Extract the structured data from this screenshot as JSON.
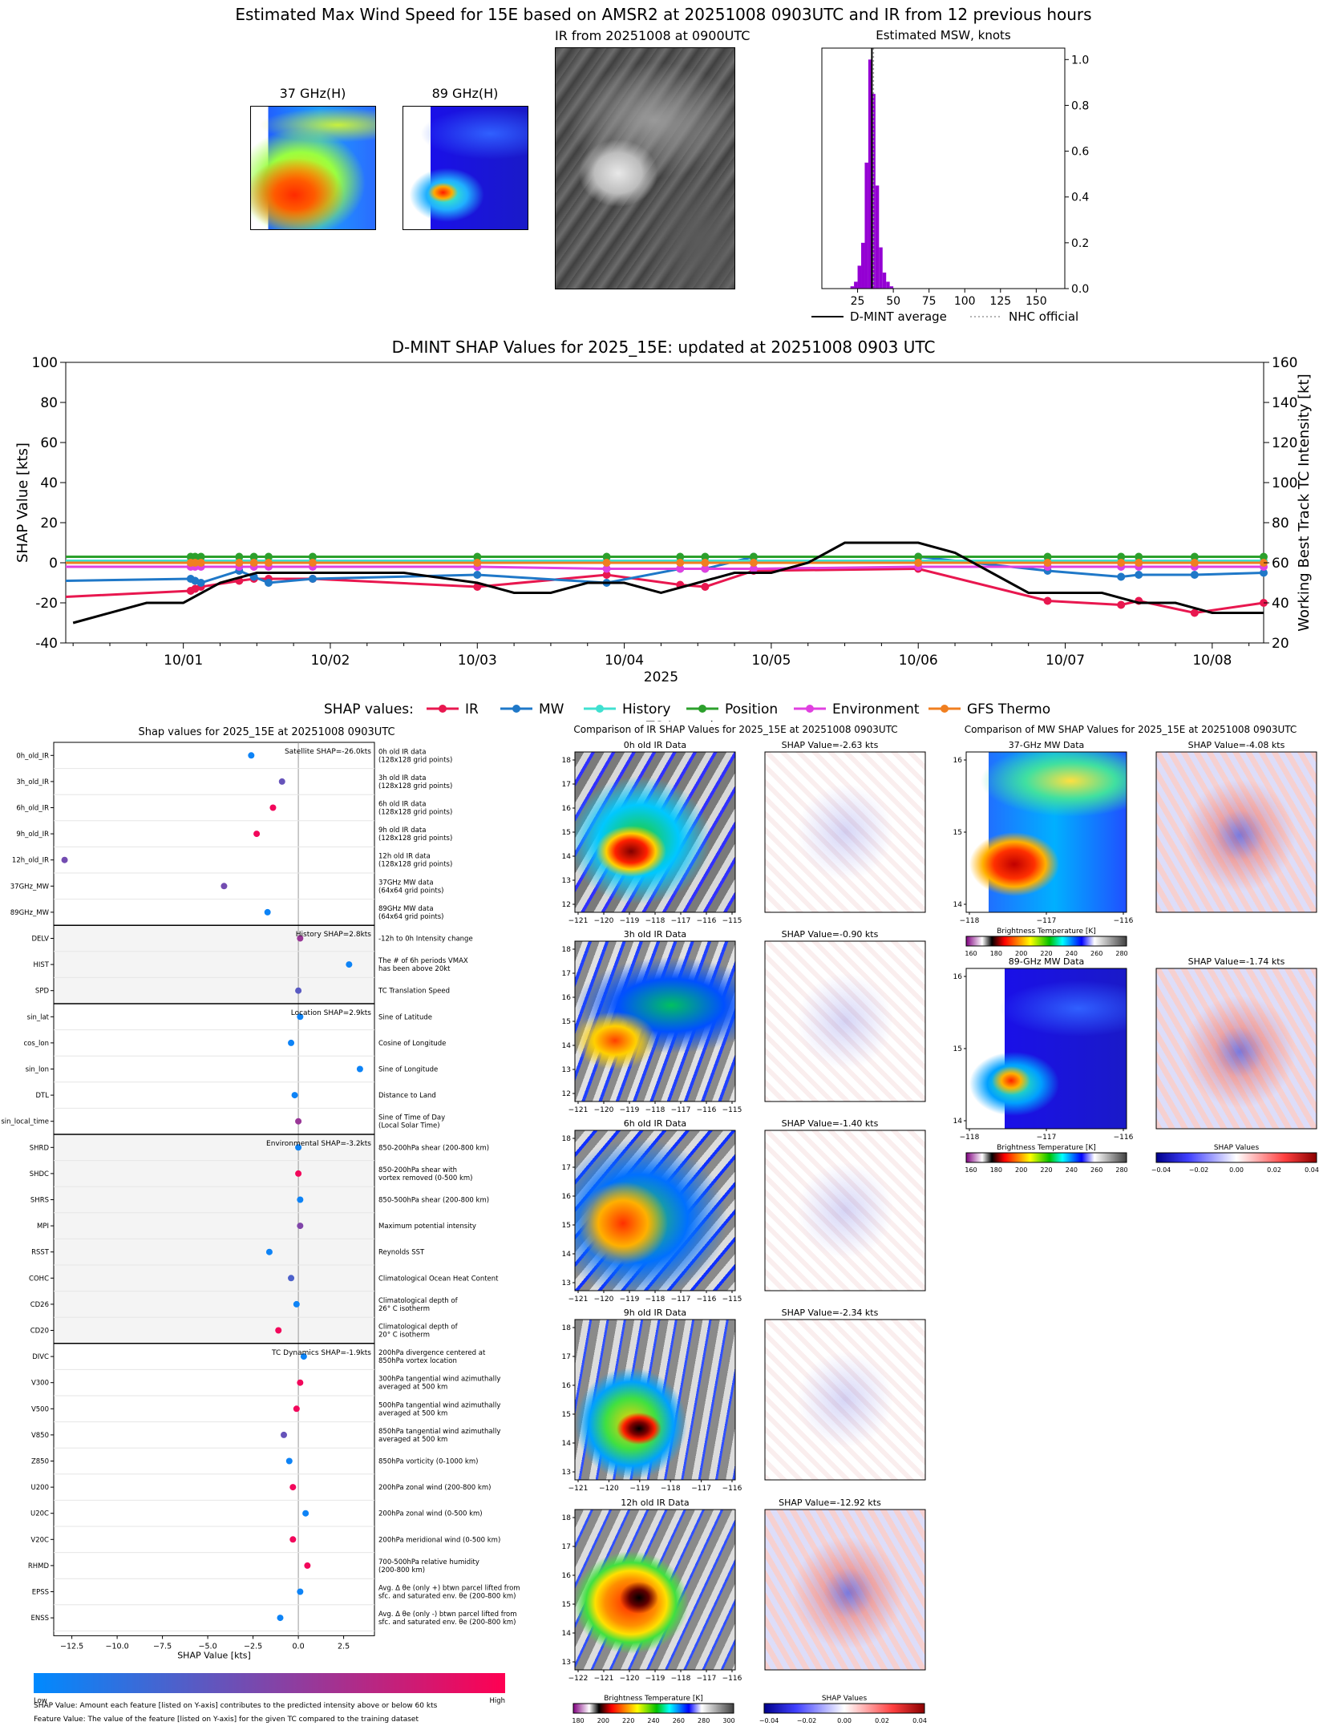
{
  "figure_title": "Estimated Max Wind Speed for 15E based on AMSR2 at 20251008 0903UTC and IR from 12 previous hours",
  "panels": {
    "ghz37_title": "37 GHz(H)",
    "ghz89_title": "89 GHz(H)",
    "ir_title": "IR from 20251008 at 0900UTC",
    "msw_title": "Estimated MSW, knots"
  },
  "chart_data": [
    {
      "type": "bar",
      "id": "msw_histogram",
      "title": "Estimated MSW, knots",
      "ylabel": "Relative Prob",
      "xlim": [
        0,
        170
      ],
      "ylim": [
        0,
        1.05
      ],
      "xticks": [
        "25",
        "50",
        "75",
        "100",
        "125",
        "150"
      ],
      "yticks": [
        "0.0",
        "0.2",
        "0.4",
        "0.6",
        "0.8",
        "1.0"
      ],
      "bin_width": 2.5,
      "bins_x": [
        20,
        22.5,
        25,
        27.5,
        30,
        32.5,
        35,
        37.5,
        40,
        42.5,
        45,
        47.5
      ],
      "bins_y": [
        0.01,
        0.03,
        0.1,
        0.2,
        0.55,
        1.0,
        0.85,
        0.45,
        0.18,
        0.07,
        0.03,
        0.01
      ],
      "dmint_average": 35,
      "nhc_official": 35,
      "legend": [
        "D-MINT average",
        "NHC official"
      ],
      "bar_color": "#9400d3"
    },
    {
      "type": "line",
      "id": "shap_timeseries",
      "title": "D-MINT SHAP Values for 2025_15E: updated at 20251008 0903 UTC",
      "xlabel": "2025",
      "ylabel": "SHAP Value [kts]",
      "y2label": "Working Best Track TC Intensity [kt]",
      "xlim": [
        -0.8,
        7.35
      ],
      "ylim": [
        -40,
        100
      ],
      "y2lim": [
        20,
        160
      ],
      "xticks": [
        "10/01",
        "10/02",
        "10/03",
        "10/04",
        "10/05",
        "10/06",
        "10/07",
        "10/08"
      ],
      "yticks": [
        "-40",
        "-20",
        "0",
        "20",
        "40",
        "60",
        "80",
        "100"
      ],
      "y2ticks": [
        "20",
        "40",
        "60",
        "80",
        "100",
        "120",
        "140",
        "160"
      ],
      "legend_prefix": "SHAP values:",
      "x": [
        -0.8,
        0.05,
        0.08,
        0.12,
        0.38,
        0.48,
        0.58,
        0.88,
        2.0,
        2.88,
        3.38,
        3.55,
        3.88,
        5.0,
        5.88,
        6.38,
        6.5,
        6.88,
        7.35
      ],
      "series": [
        {
          "name": "IR",
          "color": "#e8174f",
          "values": [
            -17,
            -14,
            -13,
            -12,
            -9,
            -8,
            -8,
            -8,
            -12,
            -6,
            -11,
            -12,
            -4,
            -3,
            -19,
            -21,
            -19,
            -25,
            -20
          ]
        },
        {
          "name": "MW",
          "color": "#1f78c8",
          "values": [
            -9,
            -8,
            -9,
            -10,
            -4,
            -7,
            -10,
            -8,
            -6,
            -10,
            -3,
            -3,
            3,
            3,
            -4,
            -7,
            -6,
            -6,
            -5
          ]
        },
        {
          "name": "History",
          "color": "#40e0d0",
          "values": [
            1,
            1,
            1,
            1,
            1,
            1,
            1,
            1,
            1,
            1,
            1,
            1,
            1,
            1,
            1,
            1,
            1,
            1,
            1
          ]
        },
        {
          "name": "Position",
          "color": "#2ca02c",
          "values": [
            3,
            3,
            3,
            3,
            3,
            3,
            3,
            3,
            3,
            3,
            3,
            3,
            3,
            3,
            3,
            3,
            3,
            3,
            3
          ]
        },
        {
          "name": "Environment",
          "color": "#e040e0",
          "values": [
            -2,
            -2,
            -2,
            -2,
            -2,
            -2,
            -2,
            -2,
            -2,
            -3,
            -3,
            -3,
            -3,
            -2,
            -2,
            -2,
            -2,
            -2,
            -2
          ]
        },
        {
          "name": "GFS Thermo",
          "color": "#f07f20",
          "values": [
            0,
            0,
            0,
            0,
            0,
            0,
            0,
            0,
            0,
            0,
            0,
            0,
            0,
            0,
            0,
            0,
            0,
            0,
            0
          ]
        }
      ],
      "intensity": {
        "name": "TC Intensity",
        "x": [
          -0.75,
          -0.25,
          0.0,
          0.25,
          0.5,
          1.0,
          1.5,
          2.0,
          2.25,
          2.5,
          2.75,
          3.0,
          3.25,
          3.5,
          3.75,
          4.0,
          4.25,
          4.5,
          4.75,
          5.0,
          5.25,
          5.5,
          5.75,
          6.0,
          6.25,
          6.5,
          6.75,
          7.0,
          7.25,
          7.35
        ],
        "values": [
          30,
          40,
          40,
          50,
          55,
          55,
          55,
          50,
          45,
          45,
          50,
          50,
          45,
          50,
          55,
          55,
          60,
          70,
          70,
          70,
          65,
          55,
          45,
          45,
          45,
          40,
          40,
          35,
          35,
          35
        ]
      }
    },
    {
      "type": "scatter",
      "id": "shap_features",
      "title": "Shap values for 2025_15E at 20251008 0903UTC",
      "xlabel": "SHAP Value [kts]",
      "xlim": [
        -13.5,
        4.2
      ],
      "xticks": [
        "−12.5",
        "−10.0",
        "−7.5",
        "−5.0",
        "−2.5",
        "0.0",
        "2.5"
      ],
      "colorbar_low": "Low",
      "colorbar_high": "High",
      "groups": [
        {
          "label": "Satellite SHAP=-26.0kts",
          "start": 0,
          "end": 6
        },
        {
          "label": "History SHAP=2.8kts",
          "start": 7,
          "end": 9
        },
        {
          "label": "Location SHAP=2.9kts",
          "start": 10,
          "end": 14
        },
        {
          "label": "Environmental SHAP=-3.2kts",
          "start": 15,
          "end": 22
        },
        {
          "label": "TC Dynamics SHAP=-1.9kts",
          "start": 23,
          "end": 33
        }
      ],
      "features": [
        {
          "name": "0h_old_IR",
          "desc": [
            "0h old IR data",
            "(128x128 grid points)"
          ],
          "value": -2.6,
          "fv": 0.05
        },
        {
          "name": "3h_old_IR",
          "desc": [
            "3h old IR data",
            "(128x128 grid points)"
          ],
          "value": -0.9,
          "fv": 0.4
        },
        {
          "name": "6h_old_IR",
          "desc": [
            "6h old IR data",
            "(128x128 grid points)"
          ],
          "value": -1.4,
          "fv": 0.95
        },
        {
          "name": "9h_old_IR",
          "desc": [
            "9h old IR data",
            "(128x128 grid points)"
          ],
          "value": -2.3,
          "fv": 0.95
        },
        {
          "name": "12h_old_IR",
          "desc": [
            "12h old IR data",
            "(128x128 grid points)"
          ],
          "value": -12.9,
          "fv": 0.45
        },
        {
          "name": "37GHz_MW",
          "desc": [
            "37GHz MW data",
            "(64x64 grid points)"
          ],
          "value": -4.1,
          "fv": 0.45
        },
        {
          "name": "89GHz_MW",
          "desc": [
            "89GHz MW data",
            "(64x64 grid points)"
          ],
          "value": -1.7,
          "fv": 0.05
        },
        {
          "name": "DELV",
          "desc": [
            "-12h to 0h Intensity change"
          ],
          "value": 0.1,
          "fv": 0.6
        },
        {
          "name": "HIST",
          "desc": [
            "The # of 6h periods VMAX",
            "has been above 20kt"
          ],
          "value": 2.8,
          "fv": 0.05
        },
        {
          "name": "SPD",
          "desc": [
            "TC Translation Speed"
          ],
          "value": 0.0,
          "fv": 0.35
        },
        {
          "name": "sin_lat",
          "desc": [
            "Sine of Latitude"
          ],
          "value": 0.1,
          "fv": 0.05
        },
        {
          "name": "cos_lon",
          "desc": [
            "Cosine of Longitude"
          ],
          "value": -0.4,
          "fv": 0.05
        },
        {
          "name": "sin_lon",
          "desc": [
            "Sine of Longitude"
          ],
          "value": 3.4,
          "fv": 0.05
        },
        {
          "name": "DTL",
          "desc": [
            "Distance to Land"
          ],
          "value": -0.2,
          "fv": 0.05
        },
        {
          "name": "sin_local_time",
          "desc": [
            "Sine of Time of Day",
            "(Local Solar Time)"
          ],
          "value": 0.0,
          "fv": 0.6
        },
        {
          "name": "SHRD",
          "desc": [
            "850-200hPa shear (200-800 km)"
          ],
          "value": 0.0,
          "fv": 0.05
        },
        {
          "name": "SHDC",
          "desc": [
            "850-200hPa shear with",
            "vortex removed (0-500 km)"
          ],
          "value": 0.0,
          "fv": 0.95
        },
        {
          "name": "SHRS",
          "desc": [
            "850-500hPa shear (200-800 km)"
          ],
          "value": 0.1,
          "fv": 0.05
        },
        {
          "name": "MPI",
          "desc": [
            "Maximum potential intensity"
          ],
          "value": 0.1,
          "fv": 0.5
        },
        {
          "name": "RSST",
          "desc": [
            "Reynolds SST"
          ],
          "value": -1.6,
          "fv": 0.05
        },
        {
          "name": "COHC",
          "desc": [
            "Climatological Ocean Heat Content"
          ],
          "value": -0.4,
          "fv": 0.3
        },
        {
          "name": "CD26",
          "desc": [
            "Climatological depth of",
            "26° C isotherm"
          ],
          "value": -0.1,
          "fv": 0.05
        },
        {
          "name": "CD20",
          "desc": [
            "Climatological depth of",
            "20° C isotherm"
          ],
          "value": -1.1,
          "fv": 0.95
        },
        {
          "name": "DIVC",
          "desc": [
            "200hPa divergence centered at",
            "850hPa vortex location"
          ],
          "value": 0.3,
          "fv": 0.05
        },
        {
          "name": "V300",
          "desc": [
            "300hPa tangential wind azimuthally",
            "averaged at 500 km"
          ],
          "value": 0.1,
          "fv": 0.95
        },
        {
          "name": "V500",
          "desc": [
            "500hPa tangential wind azimuthally",
            "averaged at 500 km"
          ],
          "value": -0.1,
          "fv": 0.95
        },
        {
          "name": "V850",
          "desc": [
            "850hPa tangential wind azimuthally",
            "averaged at 500 km"
          ],
          "value": -0.8,
          "fv": 0.4
        },
        {
          "name": "Z850",
          "desc": [
            "850hPa vorticity (0-1000 km)"
          ],
          "value": -0.5,
          "fv": 0.05
        },
        {
          "name": "U200",
          "desc": [
            "200hPa zonal wind (200-800 km)"
          ],
          "value": -0.3,
          "fv": 0.95
        },
        {
          "name": "U20C",
          "desc": [
            "200hPa zonal wind (0-500 km)"
          ],
          "value": 0.4,
          "fv": 0.05
        },
        {
          "name": "V20C",
          "desc": [
            "200hPa meridional wind (0-500 km)"
          ],
          "value": -0.3,
          "fv": 0.95
        },
        {
          "name": "RHMD",
          "desc": [
            "700-500hPa relative humidity",
            "(200-800 km)"
          ],
          "value": 0.5,
          "fv": 0.95
        },
        {
          "name": "EPSS",
          "desc": [
            "Avg. Δ θe (only +) btwn parcel lifted from",
            "sfc. and saturated env. θe (200-800 km)"
          ],
          "value": 0.1,
          "fv": 0.05
        },
        {
          "name": "ENSS",
          "desc": [
            "Avg. Δ θe (only -) btwn parcel lifted from",
            "sfc. and saturated env. θe (200-800 km)"
          ],
          "value": -1.0,
          "fv": 0.05
        }
      ],
      "notes": [
        "SHAP Value: Amount each feature [listed on Y-axis] contributes to the predicted intensity above or below 60 kts",
        "Feature Value: The value of the feature [listed on Y-axis] for the given TC compared to the training dataset"
      ]
    }
  ],
  "ir_comparison": {
    "title": "Comparison of IR SHAP Values for 2025_15E at 20251008 0903UTC",
    "rows": [
      {
        "data_title": "0h old IR Data",
        "shap_title": "SHAP Value=-2.63 kts",
        "yticks": [
          "18",
          "17",
          "16",
          "15",
          "14",
          "13",
          "12"
        ],
        "xticks": [
          "−121",
          "−120",
          "−119",
          "−118",
          "−117",
          "−116",
          "−115"
        ]
      },
      {
        "data_title": "3h old IR Data",
        "shap_title": "SHAP Value=-0.90 kts",
        "yticks": [
          "18",
          "17",
          "16",
          "15",
          "14",
          "13",
          "12"
        ],
        "xticks": [
          "−121",
          "−120",
          "−119",
          "−118",
          "−117",
          "−116",
          "−115"
        ]
      },
      {
        "data_title": "6h old IR Data",
        "shap_title": "SHAP Value=-1.40 kts",
        "yticks": [
          "18",
          "17",
          "16",
          "15",
          "14",
          "13"
        ],
        "xticks": [
          "−121",
          "−120",
          "−119",
          "−118",
          "−117",
          "−116",
          "−115"
        ]
      },
      {
        "data_title": "9h old IR Data",
        "shap_title": "SHAP Value=-2.34 kts",
        "yticks": [
          "18",
          "17",
          "16",
          "15",
          "14",
          "13"
        ],
        "xticks": [
          "−121",
          "−120",
          "−119",
          "−118",
          "−117",
          "−116"
        ]
      },
      {
        "data_title": "12h old IR Data",
        "shap_title": "SHAP Value=-12.92 kts",
        "yticks": [
          "18",
          "17",
          "16",
          "15",
          "14",
          "13"
        ],
        "xticks": [
          "−122",
          "−121",
          "−120",
          "−119",
          "−118",
          "−117",
          "−116"
        ]
      }
    ],
    "cbar_bt_label": "Brightness Temperature [K]",
    "cbar_bt_ticks": [
      "180",
      "200",
      "220",
      "240",
      "260",
      "280",
      "300"
    ],
    "cbar_shap_label": "SHAP Values",
    "cbar_shap_ticks": [
      "−0.04",
      "−0.02",
      "0.00",
      "0.02",
      "0.04"
    ]
  },
  "mw_comparison": {
    "title": "Comparison of MW SHAP Values for 2025_15E at 20251008 0903UTC",
    "rows": [
      {
        "data_title": "37-GHz MW Data",
        "shap_title": "SHAP Value=-4.08 kts",
        "yticks": [
          "16",
          "15",
          "14"
        ],
        "xticks": [
          "−118",
          "−117",
          "−116"
        ]
      },
      {
        "data_title": "89-GHz MW Data",
        "shap_title": "SHAP Value=-1.74 kts",
        "yticks": [
          "16",
          "15",
          "14"
        ],
        "xticks": [
          "−118",
          "−117",
          "−116"
        ]
      }
    ],
    "cbar_bt_label": "Brightness Temperature [K]",
    "cbar_bt_ticks": [
      "160",
      "180",
      "200",
      "220",
      "240",
      "260",
      "280"
    ],
    "cbar_shap_label": "SHAP Values",
    "cbar_shap_ticks": [
      "−0.04",
      "−0.02",
      "0.00",
      "0.02",
      "0.04"
    ]
  }
}
